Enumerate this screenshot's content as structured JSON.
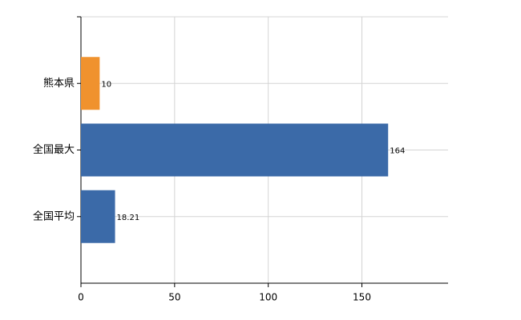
{
  "chart_data": {
    "type": "hbar",
    "categories": [
      "熊本県",
      "全国最大",
      "全国平均"
    ],
    "values": [
      10,
      164,
      18.21
    ],
    "colors": [
      "#f0922e",
      "#3b6aa8",
      "#3b6aa8"
    ],
    "xlim": [
      0,
      196
    ],
    "xticks": [
      0,
      50,
      100,
      150
    ],
    "grid": true
  }
}
